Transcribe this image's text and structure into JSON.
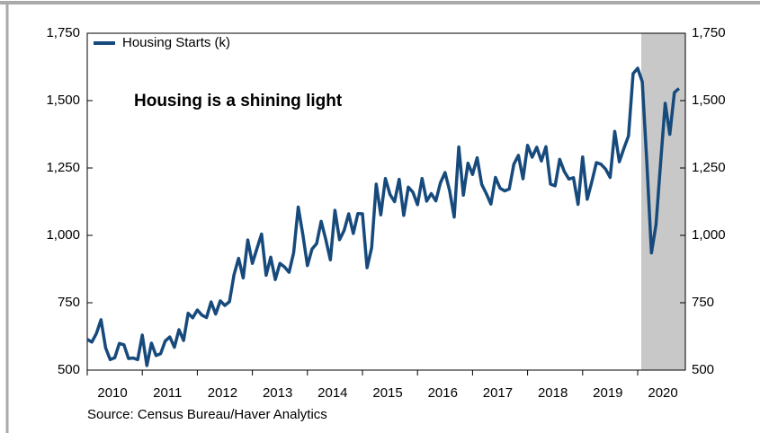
{
  "chart_data": {
    "type": "line",
    "annotation": "Housing is a shining light",
    "source": "Source:  Census Bureau/Haver Analytics",
    "categories": [
      "2010",
      null,
      null,
      null,
      null,
      null,
      null,
      null,
      null,
      null,
      null,
      null,
      "2011",
      null,
      null,
      null,
      null,
      null,
      null,
      null,
      null,
      null,
      null,
      null,
      "2012",
      null,
      null,
      null,
      null,
      null,
      null,
      null,
      null,
      null,
      null,
      null,
      "2013",
      null,
      null,
      null,
      null,
      null,
      null,
      null,
      null,
      null,
      null,
      null,
      "2014",
      null,
      null,
      null,
      null,
      null,
      null,
      null,
      null,
      null,
      null,
      null,
      "2015",
      null,
      null,
      null,
      null,
      null,
      null,
      null,
      null,
      null,
      null,
      null,
      "2016",
      null,
      null,
      null,
      null,
      null,
      null,
      null,
      null,
      null,
      null,
      null,
      "2017",
      null,
      null,
      null,
      null,
      null,
      null,
      null,
      null,
      null,
      null,
      null,
      "2018",
      null,
      null,
      null,
      null,
      null,
      null,
      null,
      null,
      null,
      null,
      null,
      "2019",
      null,
      null,
      null,
      null,
      null,
      null,
      null,
      null,
      null,
      null,
      null,
      "2020",
      null,
      null,
      null,
      null,
      null,
      null,
      null,
      null,
      null
    ],
    "series": [
      {
        "name": "Housing Starts (k)",
        "color": "#174a7c",
        "values": [
          614,
          604,
          636,
          687,
          583,
          539,
          546,
          599,
          594,
          543,
          545,
          539,
          630,
          517,
          600,
          554,
          561,
          608,
          623,
          585,
          650,
          610,
          711,
          694,
          723,
          704,
          695,
          753,
          708,
          757,
          740,
          754,
          854,
          915,
          842,
          983,
          896,
          951,
          1005,
          852,
          919,
          836,
          896,
          883,
          863,
          936,
          1105,
          1003,
          888,
          949,
          969,
          1052,
          985,
          909,
          1093,
          984,
          1018,
          1080,
          1007,
          1081,
          1080,
          880,
          954,
          1190,
          1076,
          1211,
          1152,
          1125,
          1208,
          1074,
          1179,
          1160,
          1114,
          1211,
          1127,
          1155,
          1128,
          1195,
          1233,
          1166,
          1068,
          1328,
          1149,
          1268,
          1226,
          1288,
          1189,
          1155,
          1116,
          1215,
          1175,
          1165,
          1172,
          1264,
          1297,
          1210,
          1334,
          1290,
          1327,
          1276,
          1329,
          1190,
          1184,
          1282,
          1237,
          1209,
          1214,
          1115,
          1291,
          1134,
          1199,
          1270,
          1264,
          1246,
          1215,
          1386,
          1273,
          1323,
          1369,
          1600,
          1620,
          1570,
          1270,
          935,
          1040,
          1270,
          1490,
          1375,
          1530,
          1545
        ]
      }
    ],
    "ylim": [
      500,
      1750
    ],
    "yticks": [
      500,
      750,
      {
        "value": 1000,
        "label": "1,000"
      },
      {
        "value": 1250,
        "label": "1,250"
      },
      {
        "value": 1500,
        "label": "1,500"
      },
      {
        "value": 1750,
        "label": "1,750"
      }
    ],
    "y2lim": [
      500,
      1750
    ],
    "y2ticks": [
      500,
      750,
      {
        "value": 1000,
        "label": "1,000"
      },
      {
        "value": 1250,
        "label": "1,250"
      },
      {
        "value": 1500,
        "label": "1,500"
      },
      {
        "value": 1750,
        "label": "1,750"
      }
    ],
    "legend": "top-left",
    "grid": false
  }
}
